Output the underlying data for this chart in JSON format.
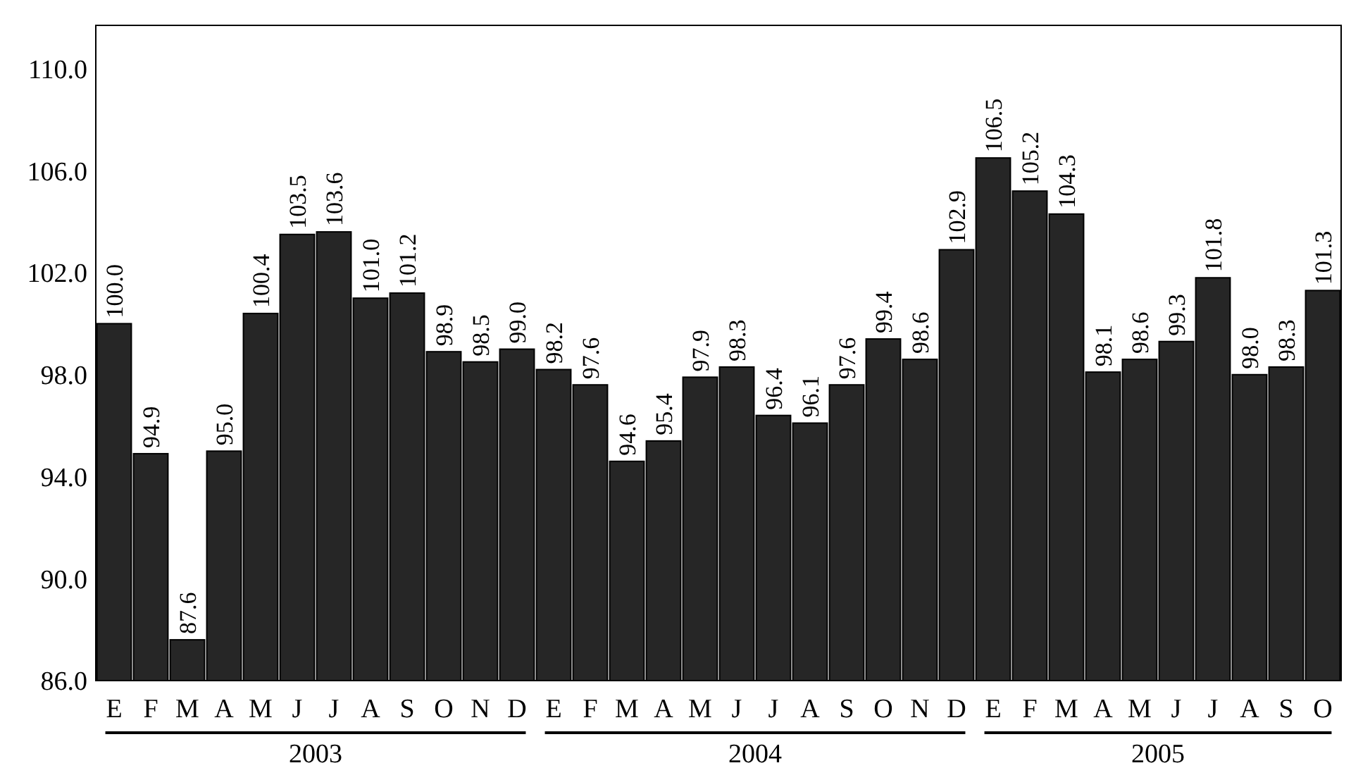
{
  "chart_data": {
    "type": "bar",
    "categories": [
      "E",
      "F",
      "M",
      "A",
      "M",
      "J",
      "J",
      "A",
      "S",
      "O",
      "N",
      "D",
      "E",
      "F",
      "M",
      "A",
      "M",
      "J",
      "J",
      "A",
      "S",
      "O",
      "N",
      "D",
      "E",
      "F",
      "M",
      "A",
      "M",
      "J",
      "J",
      "A",
      "S",
      "O"
    ],
    "values": [
      100.0,
      94.9,
      87.6,
      95.0,
      100.4,
      103.5,
      103.6,
      101.0,
      101.2,
      98.9,
      98.5,
      99.0,
      98.2,
      97.6,
      94.6,
      95.4,
      97.9,
      98.3,
      96.4,
      96.1,
      97.6,
      99.4,
      98.6,
      102.9,
      106.5,
      105.2,
      104.3,
      98.1,
      98.6,
      99.3,
      101.8,
      98.0,
      98.3,
      101.3
    ],
    "color": "#262626",
    "ylim": [
      86,
      111.7
    ],
    "yticks": [
      {
        "value": 86,
        "label": "86.0"
      },
      {
        "value": 90,
        "label": "90.0"
      },
      {
        "value": 94,
        "label": "94.0"
      },
      {
        "value": 98,
        "label": "98.0"
      },
      {
        "value": 102,
        "label": "102.0"
      },
      {
        "value": 106,
        "label": "106.0"
      },
      {
        "value": 110,
        "label": "110.0"
      }
    ],
    "value_labels": [
      "100.0",
      "94.9",
      "87.6",
      "95.0",
      "100.4",
      "103.5",
      "103.6",
      "101.0",
      "101.2",
      "98.9",
      "98.5",
      "99.0",
      "98.2",
      "97.6",
      "94.6",
      "95.4",
      "97.9",
      "98.3",
      "96.4",
      "96.1",
      "97.6",
      "99.4",
      "98.6",
      "102.9",
      "106.5",
      "105.2",
      "104.3",
      "98.1",
      "98.6",
      "99.3",
      "101.8",
      "98.0",
      "98.3",
      "101.3"
    ],
    "grid": false,
    "annotations": [
      "2003",
      "2004",
      "2005"
    ]
  }
}
